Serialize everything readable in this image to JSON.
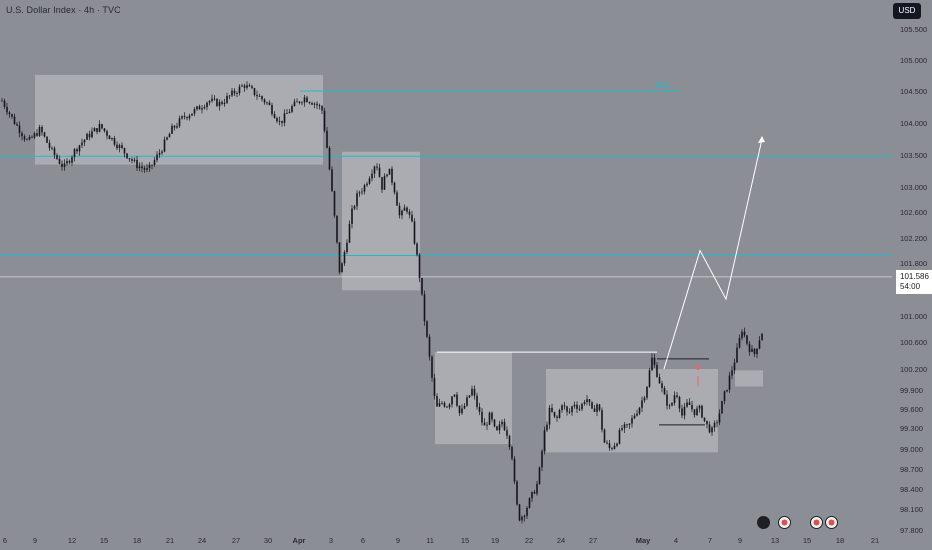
{
  "header": {
    "title": "U.S. Dollar Index · 4h · TVC",
    "currency_button": "USD"
  },
  "price_badge": {
    "price": "101.586",
    "countdown": "54:00"
  },
  "colors": {
    "background": "#8c8e95",
    "candle": "#15151a",
    "zone_fill": "#b4b6bc",
    "level_line": "#25b8cc",
    "projection": "#ffffff",
    "marker": "#e36a6a"
  },
  "icons": [
    "flash-icon",
    "us-flag-icon",
    "us-flag-icon",
    "us-flag-icon"
  ],
  "chart_data": {
    "type": "candlestick",
    "title": "U.S. Dollar Index · 4h · TVC",
    "y_axis": {
      "side": "right",
      "tick_labels": [
        "105.500",
        "105.000",
        "104.500",
        "104.000",
        "103.500",
        "103.000",
        "102.600",
        "102.200",
        "101.800",
        "101.400",
        "101.000",
        "100.600",
        "100.200",
        "99.900",
        "99.600",
        "99.300",
        "99.000",
        "98.700",
        "98.400",
        "98.100",
        "97.800"
      ],
      "tick_values": [
        105.5,
        105.0,
        104.5,
        104.0,
        103.5,
        103.0,
        102.6,
        102.2,
        101.8,
        101.4,
        101.0,
        100.6,
        100.2,
        99.9,
        99.6,
        99.3,
        99.0,
        98.7,
        98.4,
        98.1,
        97.8
      ]
    },
    "x_axis": {
      "tick_labels": [
        "6",
        "9",
        "12",
        "15",
        "18",
        "21",
        "24",
        "27",
        "30",
        "Apr",
        "3",
        "6",
        "9",
        "11",
        "15",
        "19",
        "22",
        "24",
        "27",
        "May",
        "4",
        "7",
        "9",
        "13",
        "15",
        "18",
        "21"
      ],
      "bold_labels": [
        "Apr",
        "May"
      ]
    },
    "current_price": 101.586,
    "horizontal_levels": [
      {
        "label": "BSL",
        "price": 104.5
      },
      {
        "price": 103.48
      },
      {
        "price": 101.92
      },
      {
        "price": 101.586
      }
    ],
    "zones": [
      {
        "from": "Mar 8",
        "to": "Mar 30",
        "high": 104.76,
        "low": 103.35
      },
      {
        "from": "Apr 1",
        "to": "Apr 10",
        "high": 103.55,
        "low": 101.38
      },
      {
        "from": "Apr 10",
        "to": "Apr 21",
        "high": 100.45,
        "low": 99.07
      },
      {
        "from": "Apr 24",
        "to": "May 8",
        "high": 100.2,
        "low": 98.95
      },
      {
        "from": "May 10",
        "to": "May 12",
        "high": 100.18,
        "low": 99.95
      }
    ],
    "projection_path": [
      100.2,
      102.0,
      101.25,
      103.75
    ]
  }
}
